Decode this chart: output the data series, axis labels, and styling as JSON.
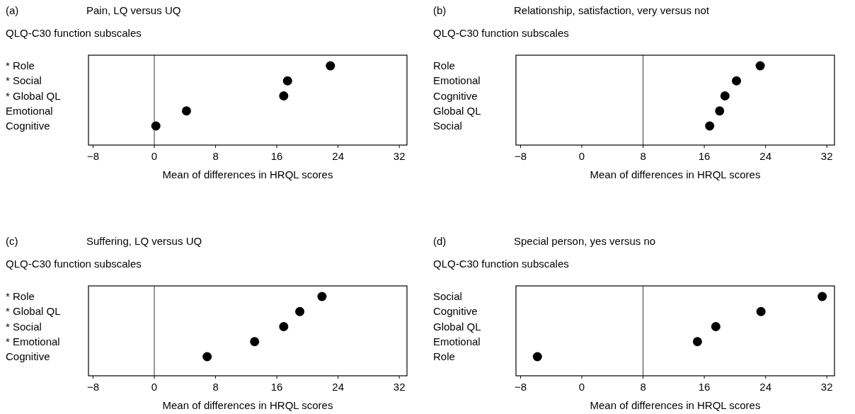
{
  "chart_data": [
    {
      "type": "scatter",
      "orientation": "horizontal",
      "title": "Pain, LQ versus UQ",
      "annotations": [
        "(a)"
      ],
      "ylabel": "QLQ-C30 function subscales",
      "xlabel": "Mean of differences in HRQL scores",
      "categories": [
        "* Role",
        "* Social",
        "* Global QL",
        "Emotional",
        "Cognitive"
      ],
      "values": [
        23.0,
        17.4,
        16.9,
        4.2,
        0.2
      ],
      "color": "#000000",
      "marker": "circle",
      "xlim": [
        -8.6,
        33
      ],
      "xticks": [
        -8,
        0,
        8,
        16,
        24,
        32
      ],
      "ref_lines": [
        {
          "axis": "x",
          "value": 0
        }
      ]
    },
    {
      "type": "scatter",
      "orientation": "horizontal",
      "title": "Relationship, satisfaction, very versus not",
      "annotations": [
        "(b)"
      ],
      "ylabel": "QLQ-C30 function subscales",
      "xlabel": "Mean of differences in HRQL scores",
      "categories": [
        "Role",
        "Emotional",
        "Cognitive",
        "Global QL",
        "Social"
      ],
      "values": [
        23.3,
        20.2,
        18.7,
        18.0,
        16.7
      ],
      "color": "#000000",
      "marker": "circle",
      "xlim": [
        -8.6,
        33
      ],
      "xticks": [
        -8,
        0,
        8,
        16,
        24,
        32
      ],
      "ref_lines": [
        {
          "axis": "x",
          "value": 8
        }
      ]
    },
    {
      "type": "scatter",
      "orientation": "horizontal",
      "title": "Suffering, LQ versus UQ",
      "annotations": [
        "(c)"
      ],
      "ylabel": "QLQ-C30 function subscales",
      "xlabel": "Mean of differences in HRQL scores",
      "categories": [
        "* Role",
        "* Global QL",
        "* Social",
        "* Emotional",
        "Cognitive"
      ],
      "values": [
        21.9,
        19.0,
        16.9,
        13.1,
        6.9
      ],
      "color": "#000000",
      "marker": "circle",
      "xlim": [
        -8.6,
        33
      ],
      "xticks": [
        -8,
        0,
        8,
        16,
        24,
        32
      ],
      "ref_lines": [
        {
          "axis": "x",
          "value": 0
        }
      ]
    },
    {
      "type": "scatter",
      "orientation": "horizontal",
      "title": "Special person, yes versus no",
      "annotations": [
        "(d)"
      ],
      "ylabel": "QLQ-C30 function subscales",
      "xlabel": "Mean of differences in HRQL scores",
      "categories": [
        "Social",
        "Cognitive",
        "Global QL",
        "Emotional",
        "Role"
      ],
      "values": [
        31.4,
        23.4,
        17.5,
        15.1,
        -5.8
      ],
      "color": "#000000",
      "marker": "circle",
      "xlim": [
        -8.6,
        33
      ],
      "xticks": [
        -8,
        0,
        8,
        16,
        24,
        32
      ],
      "ref_lines": [
        {
          "axis": "x",
          "value": 8
        }
      ]
    }
  ]
}
